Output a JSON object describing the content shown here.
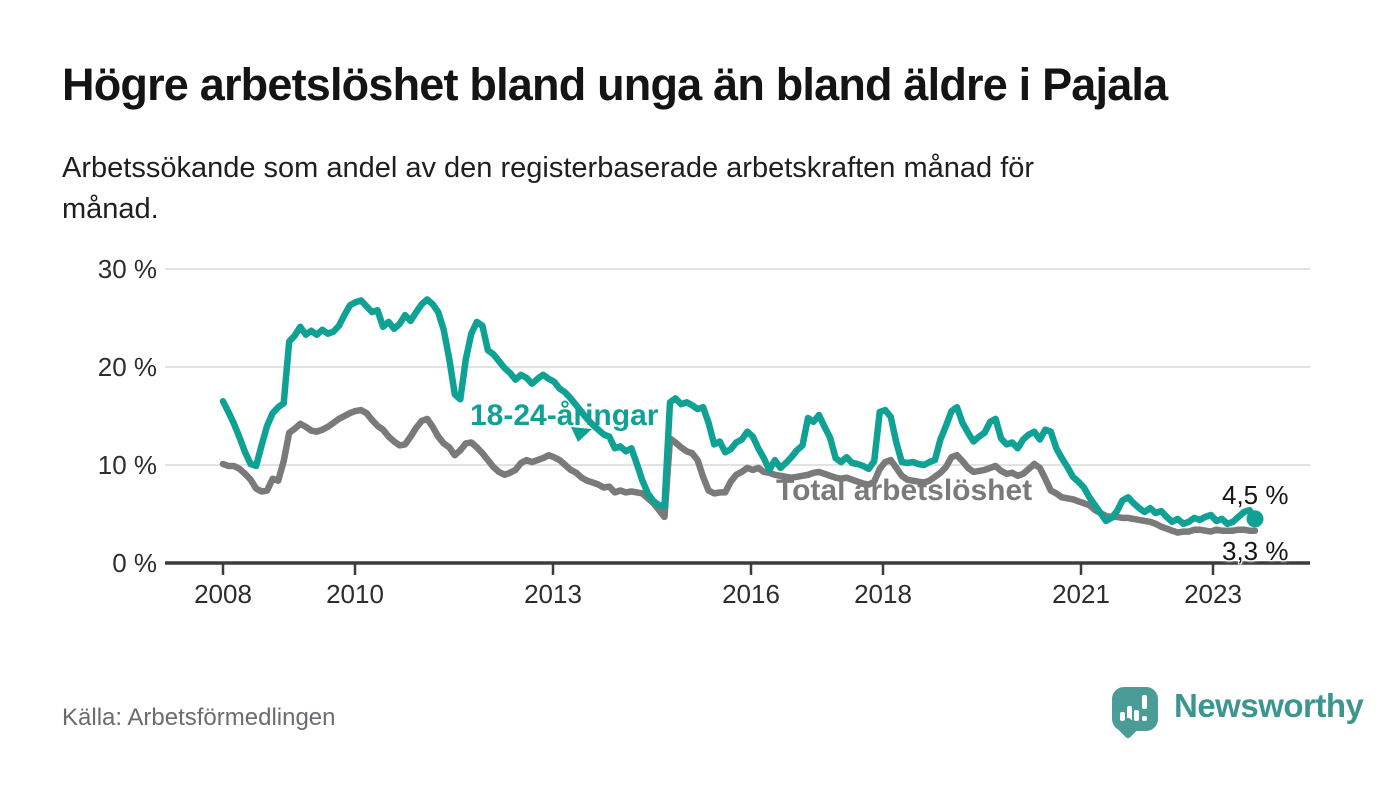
{
  "header": {
    "title": "Högre arbetslöshet bland unga än bland äldre i Pajala",
    "subtitle_line1": "Arbetssökande som andel av den registerbaserade arbetskraften månad för",
    "subtitle_line2": "månad."
  },
  "chart_data": {
    "type": "line",
    "title": "Högre arbetslöshet bland unga än bland äldre i Pajala",
    "subtitle": "Arbetssökande som andel av den registerbaserade arbetskraften månad för månad.",
    "unit": "%",
    "frequency": "monthly",
    "x_start": "2008-01",
    "x_end": "2023-08",
    "ylim": [
      0,
      30
    ],
    "grid": "horizontal",
    "y_tick_labels": [
      "30 %",
      "20 %",
      "10 %",
      "0 %"
    ],
    "x_tick_labels": [
      "2008",
      "2010",
      "2013",
      "2016",
      "2018",
      "2021",
      "2023"
    ],
    "series": [
      {
        "name": "18-24-åringar",
        "color": "#0fa194",
        "last_value_label": "4,5 %",
        "values": [
          16.5,
          15.4,
          14.2,
          12.8,
          11.3,
          10.1,
          9.9,
          12.0,
          14.0,
          15.3,
          15.9,
          16.3,
          22.6,
          23.2,
          24.1,
          23.3,
          23.7,
          23.3,
          23.8,
          23.4,
          23.6,
          24.2,
          25.3,
          26.3,
          26.6,
          26.8,
          26.2,
          25.6,
          25.8,
          24.1,
          24.6,
          23.9,
          24.4,
          25.3,
          24.7,
          25.6,
          26.4,
          26.9,
          26.4,
          25.6,
          23.8,
          20.8,
          17.2,
          16.7,
          20.8,
          23.4,
          24.6,
          24.2,
          21.7,
          21.3,
          20.6,
          19.9,
          19.4,
          18.7,
          19.2,
          18.9,
          18.3,
          18.8,
          19.2,
          18.8,
          18.5,
          17.8,
          17.4,
          16.8,
          16.1,
          15.4,
          14.7,
          14.1,
          13.6,
          13.1,
          12.9,
          11.7,
          11.9,
          11.4,
          11.7,
          10.1,
          8.4,
          7.1,
          6.3,
          5.9,
          5.8,
          16.4,
          16.8,
          16.2,
          16.4,
          16.1,
          15.7,
          15.9,
          14.3,
          12.1,
          12.4,
          11.3,
          11.6,
          12.3,
          12.6,
          13.4,
          12.9,
          11.7,
          10.7,
          9.5,
          10.5,
          9.7,
          10.2,
          10.8,
          11.5,
          12.0,
          14.8,
          14.4,
          15.1,
          13.9,
          12.8,
          10.7,
          10.3,
          10.8,
          10.2,
          10.1,
          9.9,
          9.6,
          10.4,
          15.4,
          15.6,
          14.9,
          12.3,
          10.3,
          10.2,
          10.3,
          10.1,
          10.0,
          10.3,
          10.5,
          12.6,
          14.0,
          15.5,
          15.9,
          14.3,
          13.3,
          12.4,
          12.9,
          13.3,
          14.4,
          14.7,
          12.7,
          12.1,
          12.3,
          11.7,
          12.6,
          13.1,
          13.4,
          12.6,
          13.6,
          13.4,
          11.7,
          10.7,
          9.8,
          8.8,
          8.3,
          7.7,
          6.7,
          5.9,
          5.1,
          4.3,
          4.6,
          5.3,
          6.4,
          6.7,
          6.1,
          5.6,
          5.2,
          5.6,
          5.1,
          5.3,
          4.7,
          4.2,
          4.5,
          4.0,
          4.2,
          4.6,
          4.4,
          4.7,
          4.9,
          4.3,
          4.5,
          4.0,
          4.2,
          4.7,
          5.2,
          5.4,
          4.5
        ]
      },
      {
        "name": "Total arbetslöshet",
        "color": "#7a7a7a",
        "last_value_label": "3,3 %",
        "values": [
          10.1,
          9.9,
          9.9,
          9.6,
          9.1,
          8.5,
          7.6,
          7.3,
          7.4,
          8.6,
          8.4,
          10.4,
          13.3,
          13.7,
          14.2,
          13.9,
          13.5,
          13.4,
          13.6,
          13.9,
          14.3,
          14.7,
          15.0,
          15.3,
          15.5,
          15.6,
          15.3,
          14.6,
          14.0,
          13.6,
          12.9,
          12.4,
          12.0,
          12.1,
          12.9,
          13.8,
          14.5,
          14.7,
          13.9,
          12.9,
          12.2,
          11.8,
          11.0,
          11.5,
          12.2,
          12.3,
          11.8,
          11.2,
          10.5,
          9.8,
          9.3,
          9.0,
          9.2,
          9.5,
          10.2,
          10.5,
          10.3,
          10.5,
          10.7,
          11.0,
          10.8,
          10.5,
          10.0,
          9.5,
          9.2,
          8.7,
          8.4,
          8.2,
          8.0,
          7.7,
          7.8,
          7.2,
          7.4,
          7.2,
          7.3,
          7.2,
          7.1,
          6.6,
          6.1,
          5.4,
          4.7,
          12.7,
          12.3,
          11.8,
          11.4,
          11.2,
          10.5,
          8.8,
          7.4,
          7.1,
          7.2,
          7.2,
          8.3,
          9.0,
          9.3,
          9.7,
          9.5,
          9.7,
          9.3,
          9.2,
          9.0,
          8.9,
          8.8,
          8.7,
          8.8,
          8.9,
          9.0,
          9.2,
          9.3,
          9.1,
          8.9,
          8.7,
          8.6,
          8.7,
          8.5,
          8.3,
          8.1,
          8.0,
          8.3,
          9.6,
          10.3,
          10.5,
          9.7,
          8.9,
          8.5,
          8.4,
          8.3,
          8.2,
          8.4,
          8.8,
          9.2,
          9.8,
          10.8,
          11.0,
          10.4,
          9.7,
          9.3,
          9.4,
          9.5,
          9.7,
          9.9,
          9.4,
          9.1,
          9.2,
          8.9,
          9.1,
          9.6,
          10.1,
          9.7,
          8.6,
          7.4,
          7.1,
          6.7,
          6.6,
          6.5,
          6.3,
          6.1,
          5.9,
          5.4,
          5.1,
          4.8,
          4.7,
          4.7,
          4.6,
          4.6,
          4.5,
          4.4,
          4.3,
          4.2,
          4.0,
          3.7,
          3.5,
          3.3,
          3.1,
          3.2,
          3.2,
          3.4,
          3.4,
          3.3,
          3.2,
          3.4,
          3.3,
          3.3,
          3.3,
          3.4,
          3.4,
          3.3,
          3.3
        ]
      }
    ],
    "end_labels": {
      "youth": "4,5 %",
      "total": "3,3 %"
    },
    "colors": {
      "axis": "#3c3c3c",
      "gridline": "#d9d9d9",
      "tick_text": "#2d2d2d"
    }
  },
  "footer": {
    "source": "Källa: Arbetsförmedlingen",
    "brand": "Newsworthy"
  }
}
